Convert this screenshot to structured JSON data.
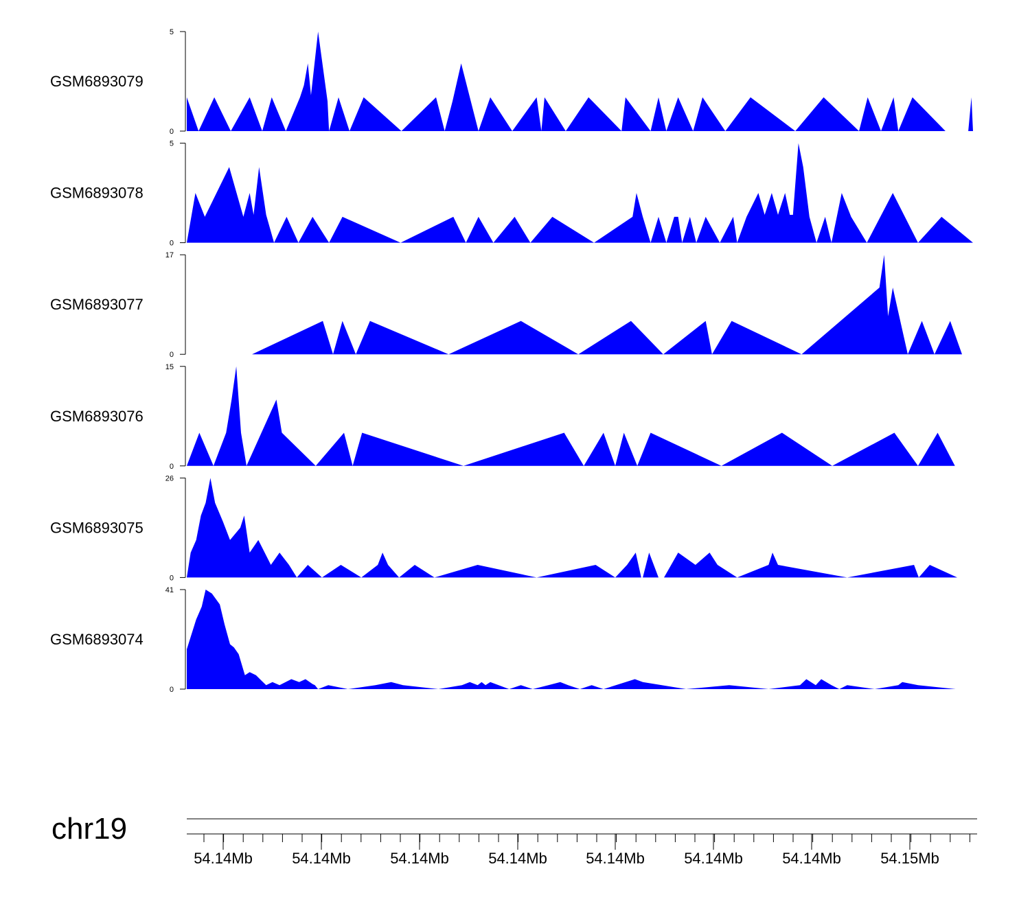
{
  "chart_data": {
    "type": "area",
    "fill_color": "#0000ff",
    "axis_color": "#000000",
    "x_range": [
      0,
      1
    ],
    "tracks": [
      {
        "name": "GSM6893079",
        "ymax": 5,
        "tick_labels": [
          "5",
          "0"
        ],
        "values": [
          [
            0,
            1.7
          ],
          [
            0.015,
            0
          ],
          [
            0.035,
            1.7
          ],
          [
            0.056,
            0
          ],
          [
            0.08,
            1.7
          ],
          [
            0.096,
            0
          ],
          [
            0.108,
            1.7
          ],
          [
            0.126,
            0
          ],
          [
            0.144,
            1.7
          ],
          [
            0.149,
            2.3
          ],
          [
            0.154,
            3.4
          ],
          [
            0.158,
            1.8
          ],
          [
            0.167,
            5.0
          ],
          [
            0.179,
            1.5
          ],
          [
            0.181,
            0
          ],
          [
            0.193,
            1.7
          ],
          [
            0.207,
            0
          ],
          [
            0.225,
            1.7
          ],
          [
            0.273,
            0
          ],
          [
            0.317,
            1.7
          ],
          [
            0.328,
            0
          ],
          [
            0.338,
            1.5
          ],
          [
            0.349,
            3.4
          ],
          [
            0.36,
            1.7
          ],
          [
            0.371,
            0
          ],
          [
            0.386,
            1.7
          ],
          [
            0.414,
            0
          ],
          [
            0.445,
            1.7
          ],
          [
            0.451,
            0
          ],
          [
            0.455,
            1.7
          ],
          [
            0.482,
            0
          ],
          [
            0.511,
            1.7
          ],
          [
            0.553,
            0
          ],
          [
            0.558,
            1.7
          ],
          [
            0.59,
            0
          ],
          [
            0.6,
            1.7
          ],
          [
            0.61,
            0
          ],
          [
            0.625,
            1.7
          ],
          [
            0.644,
            0
          ],
          [
            0.656,
            1.7
          ],
          [
            0.685,
            0
          ],
          [
            0.717,
            1.7
          ],
          [
            0.774,
            0
          ],
          [
            0.81,
            1.7
          ],
          [
            0.855,
            0
          ],
          [
            0.866,
            1.7
          ],
          [
            0.883,
            0
          ],
          [
            0.899,
            1.7
          ],
          [
            0.905,
            0
          ],
          [
            0.923,
            1.7
          ],
          [
            0.965,
            0
          ],
          [
            0.998,
            1.7
          ],
          [
            0.994,
            0
          ],
          [
            1.0,
            0
          ],
          [
            1.0,
            0
          ]
        ]
      },
      {
        "name": "GSM6893078",
        "ymax": 5,
        "tick_labels": [
          "5",
          "0"
        ],
        "values": [
          [
            0,
            0
          ],
          [
            0.011,
            2.5
          ],
          [
            0.023,
            1.3
          ],
          [
            0.054,
            3.8
          ],
          [
            0.072,
            1.3
          ],
          [
            0.08,
            2.5
          ],
          [
            0.085,
            1.4
          ],
          [
            0.092,
            3.8
          ],
          [
            0.101,
            1.4
          ],
          [
            0.111,
            0
          ],
          [
            0.127,
            1.3
          ],
          [
            0.142,
            0
          ],
          [
            0.16,
            1.3
          ],
          [
            0.181,
            0
          ],
          [
            0.198,
            1.3
          ],
          [
            0.272,
            0
          ],
          [
            0.339,
            1.3
          ],
          [
            0.355,
            0
          ],
          [
            0.371,
            1.3
          ],
          [
            0.39,
            0
          ],
          [
            0.417,
            1.3
          ],
          [
            0.437,
            0
          ],
          [
            0.465,
            1.3
          ],
          [
            0.518,
            0
          ],
          [
            0.567,
            1.3
          ],
          [
            0.572,
            2.5
          ],
          [
            0.58,
            1.3
          ],
          [
            0.59,
            0
          ],
          [
            0.6,
            1.3
          ],
          [
            0.625,
            1.3
          ],
          [
            0.61,
            0
          ],
          [
            0.62,
            1.3
          ],
          [
            0.625,
            1.3
          ],
          [
            0.63,
            0
          ],
          [
            0.64,
            1.3
          ],
          [
            0.648,
            0
          ],
          [
            0.66,
            1.3
          ],
          [
            0.678,
            0
          ],
          [
            0.695,
            1.3
          ],
          [
            0.7,
            0
          ],
          [
            0.712,
            1.3
          ],
          [
            0.727,
            2.5
          ],
          [
            0.735,
            1.4
          ],
          [
            0.744,
            2.5
          ],
          [
            0.752,
            1.4
          ],
          [
            0.761,
            2.5
          ],
          [
            0.767,
            1.4
          ],
          [
            0.771,
            1.4
          ],
          [
            0.778,
            5.0
          ],
          [
            0.784,
            3.8
          ],
          [
            0.792,
            1.3
          ],
          [
            0.801,
            0
          ],
          [
            0.812,
            1.3
          ],
          [
            0.82,
            0
          ],
          [
            0.833,
            2.5
          ],
          [
            0.845,
            1.3
          ],
          [
            0.865,
            0
          ],
          [
            0.898,
            2.5
          ],
          [
            0.93,
            0
          ],
          [
            0.96,
            1.3
          ],
          [
            1.0,
            0
          ]
        ]
      },
      {
        "name": "GSM6893077",
        "ymax": 17,
        "tick_labels": [
          "17",
          "0"
        ],
        "values": [
          [
            0.083,
            0
          ],
          [
            0.173,
            5.7
          ],
          [
            0.186,
            0
          ],
          [
            0.198,
            5.7
          ],
          [
            0.215,
            0
          ],
          [
            0.233,
            5.7
          ],
          [
            0.333,
            0
          ],
          [
            0.425,
            5.7
          ],
          [
            0.498,
            0
          ],
          [
            0.565,
            5.7
          ],
          [
            0.606,
            0
          ],
          [
            0.66,
            5.7
          ],
          [
            0.668,
            0
          ],
          [
            0.693,
            5.7
          ],
          [
            0.782,
            0
          ],
          [
            0.881,
            11.4
          ],
          [
            0.887,
            17.0
          ],
          [
            0.892,
            6.5
          ],
          [
            0.898,
            11.4
          ],
          [
            0.917,
            0
          ],
          [
            0.935,
            5.7
          ],
          [
            0.951,
            0
          ],
          [
            0.971,
            5.7
          ],
          [
            0.986,
            0
          ]
        ]
      },
      {
        "name": "GSM6893076",
        "ymax": 15,
        "tick_labels": [
          "15",
          "0"
        ],
        "values": [
          [
            0,
            0
          ],
          [
            0.016,
            5.0
          ],
          [
            0.034,
            0
          ],
          [
            0.05,
            5.0
          ],
          [
            0.057,
            10.0
          ],
          [
            0.063,
            15.0
          ],
          [
            0.069,
            5.0
          ],
          [
            0.076,
            0
          ],
          [
            0.114,
            10.0
          ],
          [
            0.121,
            5.0
          ],
          [
            0.164,
            0
          ],
          [
            0.2,
            5.0
          ],
          [
            0.211,
            0
          ],
          [
            0.223,
            5.0
          ],
          [
            0.352,
            0
          ],
          [
            0.48,
            5.0
          ],
          [
            0.505,
            0
          ],
          [
            0.53,
            5.0
          ],
          [
            0.545,
            0
          ],
          [
            0.556,
            5.0
          ],
          [
            0.573,
            0
          ],
          [
            0.59,
            5.0
          ],
          [
            0.68,
            0
          ],
          [
            0.757,
            5.0
          ],
          [
            0.821,
            0
          ],
          [
            0.9,
            5.0
          ],
          [
            0.93,
            0
          ],
          [
            0.955,
            5.0
          ],
          [
            0.977,
            0
          ]
        ]
      },
      {
        "name": "GSM6893075",
        "ymax": 26,
        "tick_labels": [
          "26",
          "0"
        ],
        "values": [
          [
            0,
            0
          ],
          [
            0.005,
            6.5
          ],
          [
            0.012,
            9.8
          ],
          [
            0.018,
            16.2
          ],
          [
            0.024,
            19.5
          ],
          [
            0.03,
            26.0
          ],
          [
            0.036,
            19.5
          ],
          [
            0.046,
            14.6
          ],
          [
            0.055,
            9.8
          ],
          [
            0.068,
            13.0
          ],
          [
            0.073,
            16.2
          ],
          [
            0.08,
            6.5
          ],
          [
            0.091,
            9.8
          ],
          [
            0.107,
            3.3
          ],
          [
            0.118,
            6.5
          ],
          [
            0.13,
            3.3
          ],
          [
            0.14,
            0
          ],
          [
            0.154,
            3.3
          ],
          [
            0.172,
            0
          ],
          [
            0.196,
            3.3
          ],
          [
            0.222,
            0
          ],
          [
            0.243,
            3.3
          ],
          [
            0.249,
            6.5
          ],
          [
            0.256,
            3.3
          ],
          [
            0.27,
            0
          ],
          [
            0.29,
            3.3
          ],
          [
            0.315,
            0
          ],
          [
            0.37,
            3.3
          ],
          [
            0.445,
            0
          ],
          [
            0.52,
            3.3
          ],
          [
            0.545,
            0
          ],
          [
            0.56,
            3.3
          ],
          [
            0.571,
            6.5
          ],
          [
            0.578,
            0
          ],
          [
            0.58,
            0
          ],
          [
            0.588,
            6.5
          ],
          [
            0.6,
            0
          ],
          [
            0.607,
            0
          ],
          [
            0.625,
            6.5
          ],
          [
            0.647,
            3.3
          ],
          [
            0.665,
            6.5
          ],
          [
            0.675,
            3.3
          ],
          [
            0.7,
            0
          ],
          [
            0.74,
            3.3
          ],
          [
            0.745,
            6.5
          ],
          [
            0.752,
            3.3
          ],
          [
            0.84,
            0
          ],
          [
            0.925,
            3.3
          ],
          [
            0.931,
            0
          ],
          [
            0.945,
            3.3
          ],
          [
            0.98,
            0
          ]
        ]
      },
      {
        "name": "GSM6893074",
        "ymax": 41,
        "tick_labels": [
          "41",
          "0"
        ],
        "values": [
          [
            0,
            16.4
          ],
          [
            0.012,
            28.7
          ],
          [
            0.019,
            34.0
          ],
          [
            0.024,
            41.0
          ],
          [
            0.032,
            39.4
          ],
          [
            0.042,
            34.9
          ],
          [
            0.048,
            26.7
          ],
          [
            0.055,
            18.5
          ],
          [
            0.06,
            17.2
          ],
          [
            0.066,
            14.4
          ],
          [
            0.074,
            5.7
          ],
          [
            0.08,
            7.0
          ],
          [
            0.088,
            5.7
          ],
          [
            0.101,
            1.6
          ],
          [
            0.109,
            2.9
          ],
          [
            0.118,
            1.6
          ],
          [
            0.133,
            4.1
          ],
          [
            0.143,
            2.9
          ],
          [
            0.151,
            4.1
          ],
          [
            0.16,
            2.1
          ],
          [
            0.163,
            1.6
          ],
          [
            0.167,
            0
          ],
          [
            0.18,
            1.6
          ],
          [
            0.205,
            0
          ],
          [
            0.24,
            1.6
          ],
          [
            0.26,
            2.9
          ],
          [
            0.275,
            1.6
          ],
          [
            0.32,
            0
          ],
          [
            0.35,
            1.6
          ],
          [
            0.36,
            2.9
          ],
          [
            0.37,
            1.6
          ],
          [
            0.375,
            2.9
          ],
          [
            0.38,
            1.6
          ],
          [
            0.386,
            2.9
          ],
          [
            0.41,
            0
          ],
          [
            0.425,
            1.6
          ],
          [
            0.44,
            0
          ],
          [
            0.46,
            1.6
          ],
          [
            0.475,
            2.9
          ],
          [
            0.485,
            1.6
          ],
          [
            0.5,
            0
          ],
          [
            0.515,
            1.6
          ],
          [
            0.53,
            0
          ],
          [
            0.57,
            4.1
          ],
          [
            0.58,
            2.9
          ],
          [
            0.635,
            0
          ],
          [
            0.69,
            1.6
          ],
          [
            0.74,
            0
          ],
          [
            0.78,
            1.6
          ],
          [
            0.788,
            4.1
          ],
          [
            0.8,
            1.6
          ],
          [
            0.807,
            4.1
          ],
          [
            0.82,
            1.6
          ],
          [
            0.83,
            0
          ],
          [
            0.84,
            1.6
          ],
          [
            0.875,
            0
          ],
          [
            0.905,
            1.6
          ],
          [
            0.91,
            2.9
          ],
          [
            0.93,
            1.6
          ],
          [
            0.978,
            0
          ]
        ]
      }
    ],
    "genome_axis": {
      "chromosome": "chr19",
      "major_tick_labels": [
        "54.14Mb",
        "54.14Mb",
        "54.14Mb",
        "54.14Mb",
        "54.14Mb",
        "54.14Mb",
        "54.14Mb",
        "54.15Mb"
      ]
    }
  }
}
